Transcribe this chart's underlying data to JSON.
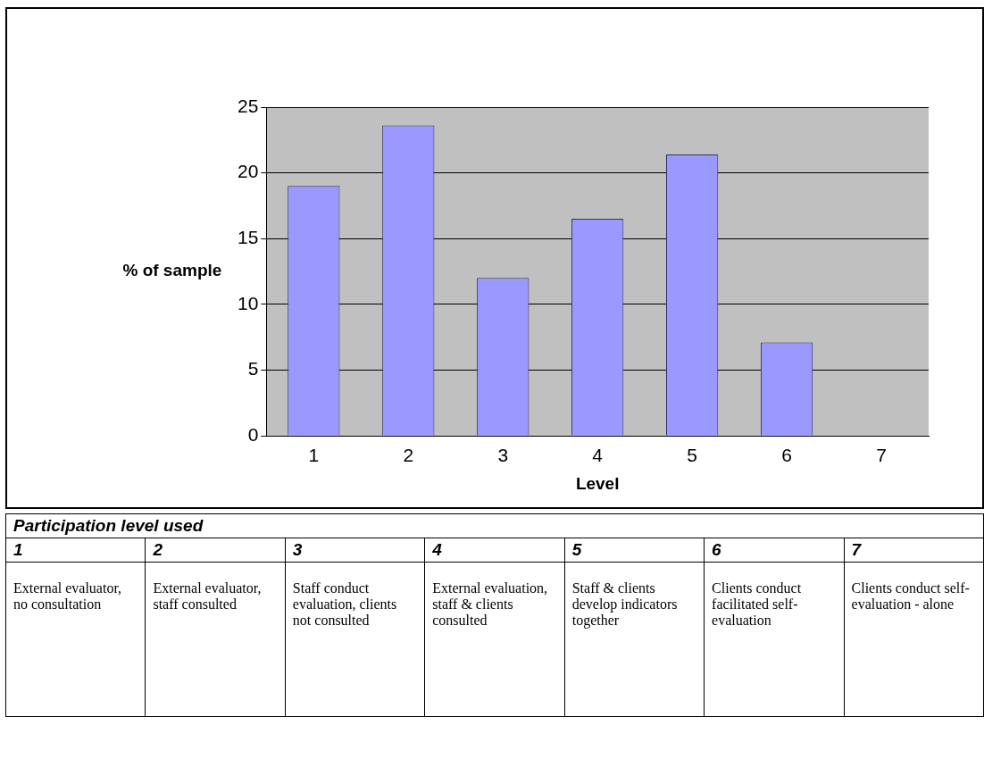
{
  "chart_data": {
    "type": "bar",
    "xlabel": "Level",
    "ylabel": "% of sample",
    "categories": [
      "1",
      "2",
      "3",
      "4",
      "5",
      "6",
      "7"
    ],
    "values": [
      19,
      23.6,
      12,
      16.5,
      21.4,
      7.1,
      0
    ],
    "color": "#9999ff",
    "ylim": [
      0,
      25
    ],
    "yticks": [
      0,
      5,
      10,
      15,
      20,
      25
    ],
    "grid": "y",
    "legend": false,
    "annotations": [
      "Participation level used",
      "External evaluator, no consultation",
      "External evaluator, staff consulted",
      "Staff conduct evaluation, clients not consulted",
      "External evaluation, staff & clients consulted",
      "Staff & clients develop indicators together",
      "Clients conduct facilitated self-evaluation",
      "Clients conduct self-evaluation - alone"
    ]
  }
}
